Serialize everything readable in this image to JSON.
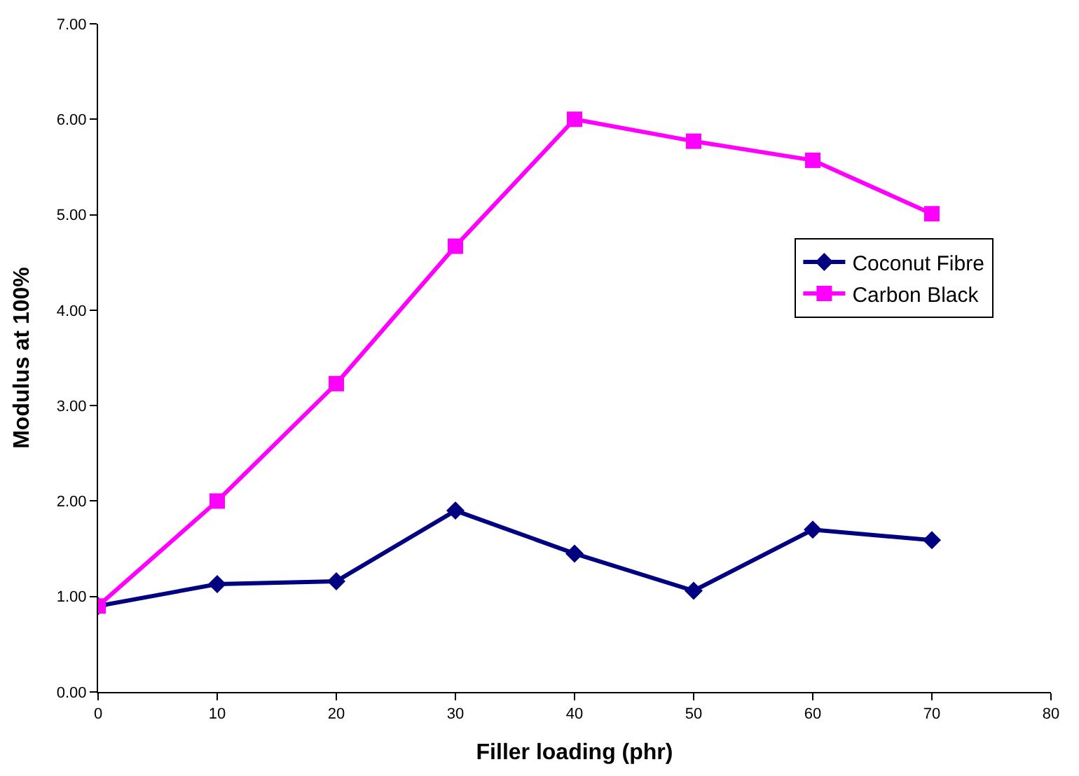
{
  "chart_data": {
    "type": "line",
    "xlabel": "Filler loading (phr)",
    "ylabel": "Modulus at 100%",
    "x": [
      0,
      10,
      20,
      30,
      40,
      50,
      60,
      70
    ],
    "series": [
      {
        "name": "Coconut Fibre",
        "color": "#000080",
        "marker": "diamond",
        "values": [
          0.9,
          1.13,
          1.16,
          1.9,
          1.45,
          1.06,
          1.7,
          1.59
        ]
      },
      {
        "name": "Carbon Black",
        "color": "#ff00ff",
        "marker": "square",
        "values": [
          0.9,
          2.0,
          3.23,
          4.67,
          6.0,
          5.77,
          5.57,
          5.01
        ]
      }
    ],
    "xlim": [
      0,
      80
    ],
    "xticks": [
      0,
      10,
      20,
      30,
      40,
      50,
      60,
      70,
      80
    ],
    "ylim": [
      0,
      7
    ],
    "yticks": [
      {
        "value": 0,
        "label": "0.00"
      },
      {
        "value": 1,
        "label": "1.00"
      },
      {
        "value": 2,
        "label": "2.00"
      },
      {
        "value": 3,
        "label": "3.00"
      },
      {
        "value": 4,
        "label": "4.00"
      },
      {
        "value": 5,
        "label": "5.00"
      },
      {
        "value": 6,
        "label": "6.00"
      },
      {
        "value": 7,
        "label": "7.00"
      }
    ],
    "legend": "right",
    "line_style": "solid"
  }
}
